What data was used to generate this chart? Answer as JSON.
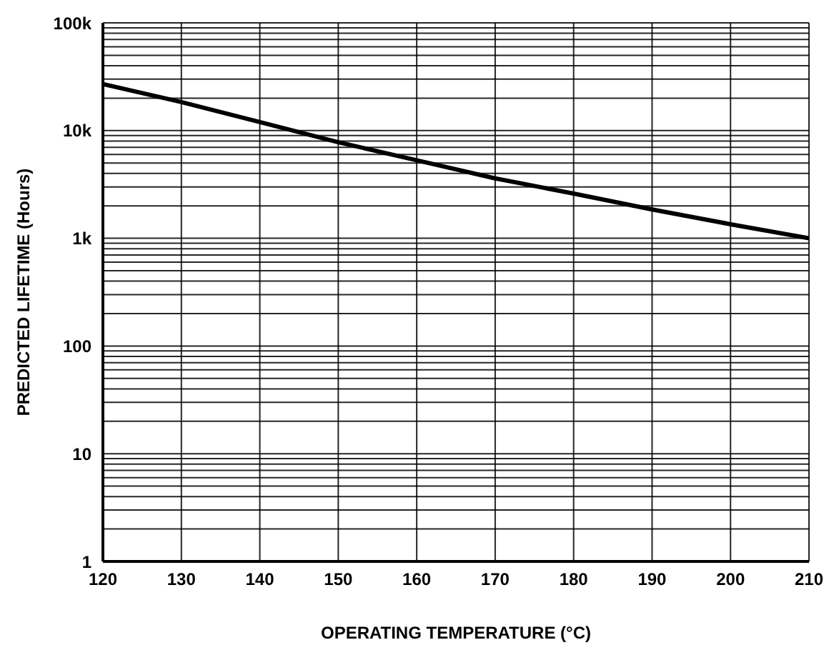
{
  "chart_data": {
    "type": "line",
    "xlabel": "OPERATING TEMPERATURE (°C)",
    "ylabel": "PREDICTED LIFETIME (Hours)",
    "x": [
      120,
      130,
      140,
      150,
      160,
      170,
      180,
      190,
      200,
      210
    ],
    "series": [
      {
        "color": "#000000",
        "values": [
          27000,
          18400,
          12000,
          7800,
          5300,
          3600,
          2600,
          1850,
          1350,
          1000
        ]
      }
    ],
    "log": "y",
    "grid": true,
    "marker": "none",
    "line_style": "solid",
    "xlim": [
      120,
      210
    ],
    "xticks": [
      120,
      130,
      140,
      150,
      160,
      170,
      180,
      190,
      200,
      210
    ],
    "ylim": [
      1,
      100000
    ],
    "yticks": [
      1,
      {
        "value": 2,
        "label": null
      },
      {
        "value": 3,
        "label": null
      },
      {
        "value": 4,
        "label": null
      },
      {
        "value": 5,
        "label": null
      },
      {
        "value": 6,
        "label": null
      },
      {
        "value": 7,
        "label": null
      },
      {
        "value": 8,
        "label": null
      },
      {
        "value": 9,
        "label": null
      },
      10,
      {
        "value": 20,
        "label": null
      },
      {
        "value": 30,
        "label": null
      },
      {
        "value": 40,
        "label": null
      },
      {
        "value": 50,
        "label": null
      },
      {
        "value": 60,
        "label": null
      },
      {
        "value": 70,
        "label": null
      },
      {
        "value": 80,
        "label": null
      },
      {
        "value": 90,
        "label": null
      },
      100,
      {
        "value": 200,
        "label": null
      },
      {
        "value": 300,
        "label": null
      },
      {
        "value": 400,
        "label": null
      },
      {
        "value": 500,
        "label": null
      },
      {
        "value": 600,
        "label": null
      },
      {
        "value": 700,
        "label": null
      },
      {
        "value": 800,
        "label": null
      },
      {
        "value": 900,
        "label": null
      },
      {
        "value": 1000,
        "label": "1k"
      },
      {
        "value": 2000,
        "label": null
      },
      {
        "value": 3000,
        "label": null
      },
      {
        "value": 4000,
        "label": null
      },
      {
        "value": 5000,
        "label": null
      },
      {
        "value": 6000,
        "label": null
      },
      {
        "value": 7000,
        "label": null
      },
      {
        "value": 8000,
        "label": null
      },
      {
        "value": 9000,
        "label": null
      },
      {
        "value": 10000,
        "label": "10k"
      },
      {
        "value": 20000,
        "label": null
      },
      {
        "value": 30000,
        "label": null
      },
      {
        "value": 40000,
        "label": null
      },
      {
        "value": 50000,
        "label": null
      },
      {
        "value": 60000,
        "label": null
      },
      {
        "value": 70000,
        "label": null
      },
      {
        "value": 80000,
        "label": null
      },
      {
        "value": 90000,
        "label": null
      },
      {
        "value": 100000,
        "label": "100k"
      }
    ]
  }
}
